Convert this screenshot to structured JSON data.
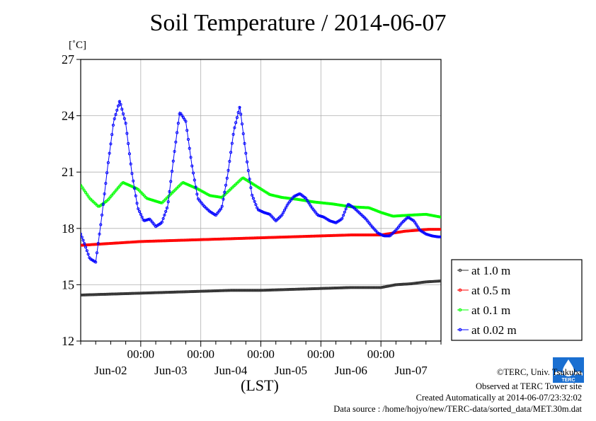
{
  "title": "Soil Temperature / 2014-06-07",
  "unit_label": "[˚C]",
  "xlabel": "(LST)",
  "credits": {
    "copyright": "©TERC, Univ. Tsukuba",
    "site": "Observed at TERC Tower site",
    "created": "Created Automatically at 2014-06-07/23:32:02",
    "source": "Data source : /home/hojyo/new/TERC-data/sorted_data/MET.30m.dat"
  },
  "logo_text": "TERC",
  "chart_data": {
    "type": "line",
    "title": "Soil Temperature / 2014-06-07",
    "ylabel": "[˚C]",
    "xlabel": "(LST)",
    "ylim": [
      12,
      27
    ],
    "yticks": [
      12,
      15,
      18,
      21,
      24,
      27
    ],
    "xlim": [
      0,
      6
    ],
    "x_units": "days since 2014-06-01 12:00 LST",
    "xticks_time": [
      "00:00",
      "00:00",
      "00:00",
      "00:00",
      "00:00"
    ],
    "xticks_time_pos": [
      1,
      2,
      3,
      4,
      5
    ],
    "xticks_date": [
      "Jun-02",
      "Jun-03",
      "Jun-04",
      "Jun-05",
      "Jun-06",
      "Jun-07"
    ],
    "xticks_date_pos": [
      0.5,
      1.5,
      2.5,
      3.5,
      4.5,
      5.5
    ],
    "grid": true,
    "legend_position": "right",
    "series": [
      {
        "name": "at 1.0 m",
        "color": "#333333",
        "x": [
          0,
          0.5,
          1,
          1.5,
          2,
          2.5,
          3,
          3.5,
          4,
          4.5,
          5,
          5.25,
          5.5,
          5.75,
          6
        ],
        "y": [
          14.45,
          14.5,
          14.55,
          14.6,
          14.65,
          14.7,
          14.7,
          14.75,
          14.8,
          14.85,
          14.85,
          15.0,
          15.05,
          15.15,
          15.2
        ]
      },
      {
        "name": "at 0.5 m",
        "color": "#ff0000",
        "x": [
          0,
          0.5,
          1,
          1.5,
          2,
          2.5,
          3,
          3.5,
          4,
          4.5,
          5,
          5.2,
          5.4,
          5.6,
          5.8,
          6
        ],
        "y": [
          17.1,
          17.2,
          17.3,
          17.35,
          17.4,
          17.45,
          17.5,
          17.55,
          17.6,
          17.65,
          17.65,
          17.75,
          17.85,
          17.9,
          17.95,
          17.95
        ]
      },
      {
        "name": "at 0.1 m",
        "color": "#00ff00",
        "x": [
          0,
          0.15,
          0.3,
          0.45,
          0.7,
          0.95,
          1.1,
          1.35,
          1.7,
          1.95,
          2.15,
          2.35,
          2.7,
          2.95,
          3.15,
          3.35,
          3.6,
          3.9,
          4.2,
          4.5,
          4.8,
          5.0,
          5.2,
          5.45,
          5.75,
          6
        ],
        "y": [
          20.3,
          19.6,
          19.15,
          19.5,
          20.45,
          20.1,
          19.6,
          19.35,
          20.45,
          20.1,
          19.75,
          19.65,
          20.7,
          20.2,
          19.8,
          19.65,
          19.55,
          19.4,
          19.3,
          19.15,
          19.1,
          18.85,
          18.65,
          18.7,
          18.75,
          18.6
        ]
      },
      {
        "name": "at 0.02 m",
        "color": "#0000ff",
        "x": [
          0,
          0.05,
          0.15,
          0.25,
          0.35,
          0.45,
          0.55,
          0.65,
          0.75,
          0.85,
          0.95,
          1.05,
          1.15,
          1.25,
          1.35,
          1.45,
          1.55,
          1.65,
          1.75,
          1.85,
          1.95,
          2.05,
          2.15,
          2.25,
          2.35,
          2.45,
          2.55,
          2.65,
          2.75,
          2.85,
          2.95,
          3.05,
          3.15,
          3.25,
          3.35,
          3.45,
          3.55,
          3.65,
          3.75,
          3.85,
          3.95,
          4.05,
          4.15,
          4.25,
          4.35,
          4.45,
          4.55,
          4.65,
          4.75,
          4.85,
          4.95,
          5.05,
          5.15,
          5.25,
          5.35,
          5.45,
          5.55,
          5.65,
          5.75,
          5.85,
          5.95,
          6
        ],
        "y": [
          17.7,
          17.3,
          16.4,
          16.2,
          18.6,
          21.3,
          23.7,
          24.8,
          23.6,
          21.0,
          19.1,
          18.4,
          18.5,
          18.1,
          18.3,
          19.2,
          21.8,
          24.2,
          23.7,
          21.4,
          19.6,
          19.2,
          18.9,
          18.7,
          19.1,
          20.9,
          23.2,
          24.5,
          22.0,
          19.8,
          19.0,
          18.85,
          18.75,
          18.4,
          18.7,
          19.3,
          19.7,
          19.85,
          19.6,
          19.1,
          18.7,
          18.6,
          18.4,
          18.3,
          18.5,
          19.3,
          19.1,
          18.8,
          18.5,
          18.1,
          17.75,
          17.6,
          17.6,
          17.9,
          18.3,
          18.6,
          18.4,
          17.9,
          17.7,
          17.6,
          17.55,
          17.55
        ]
      }
    ]
  }
}
